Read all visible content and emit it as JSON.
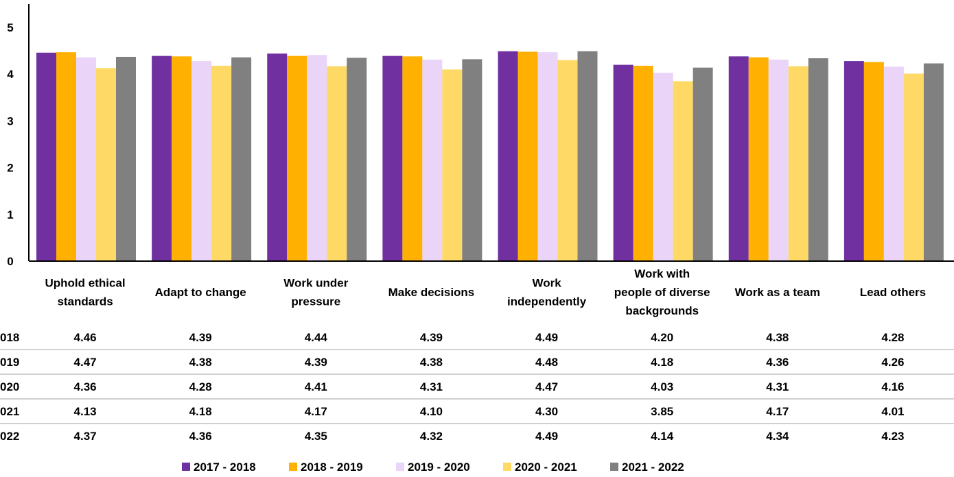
{
  "chart_data": {
    "type": "bar",
    "ylim": [
      0,
      5
    ],
    "yticks": [
      "0",
      "1",
      "2",
      "3",
      "4",
      "5"
    ],
    "categories": [
      [
        "Uphold ethical",
        "standards"
      ],
      [
        "Adapt to change"
      ],
      [
        "Work under",
        "pressure"
      ],
      [
        "Make decisions"
      ],
      [
        "Work",
        "independently"
      ],
      [
        "Work with",
        "people of diverse",
        "backgrounds"
      ],
      [
        "Work as a team"
      ],
      [
        "Lead others"
      ]
    ],
    "series": [
      {
        "name": "2017 - 2018",
        "row_label": "018",
        "color": "#7030a0",
        "values": [
          4.46,
          4.39,
          4.44,
          4.39,
          4.49,
          4.2,
          4.38,
          4.28
        ],
        "labels": [
          "4.46",
          "4.39",
          "4.44",
          "4.39",
          "4.49",
          "4.20",
          "4.38",
          "4.28"
        ]
      },
      {
        "name": "2018 - 2019",
        "row_label": "019",
        "color": "#ffb000",
        "values": [
          4.47,
          4.38,
          4.39,
          4.38,
          4.48,
          4.18,
          4.36,
          4.26
        ],
        "labels": [
          "4.47",
          "4.38",
          "4.39",
          "4.38",
          "4.48",
          "4.18",
          "4.36",
          "4.26"
        ]
      },
      {
        "name": "2019 - 2020",
        "row_label": "020",
        "color": "#ead4f8",
        "values": [
          4.36,
          4.28,
          4.41,
          4.31,
          4.47,
          4.03,
          4.31,
          4.16
        ],
        "labels": [
          "4.36",
          "4.28",
          "4.41",
          "4.31",
          "4.47",
          "4.03",
          "4.31",
          "4.16"
        ]
      },
      {
        "name": "2020 - 2021",
        "row_label": "021",
        "color": "#ffd966",
        "values": [
          4.13,
          4.18,
          4.17,
          4.1,
          4.3,
          3.85,
          4.17,
          4.01
        ],
        "labels": [
          "4.13",
          "4.18",
          "4.17",
          "4.10",
          "4.30",
          "3.85",
          "4.17",
          "4.01"
        ]
      },
      {
        "name": "2021 - 2022",
        "row_label": "022",
        "color": "#808080",
        "values": [
          4.37,
          4.36,
          4.35,
          4.32,
          4.49,
          4.14,
          4.34,
          4.23
        ],
        "labels": [
          "4.37",
          "4.36",
          "4.35",
          "4.32",
          "4.49",
          "4.14",
          "4.34",
          "4.23"
        ]
      }
    ],
    "legend_position": "bottom",
    "grid": false,
    "data_table": true
  }
}
